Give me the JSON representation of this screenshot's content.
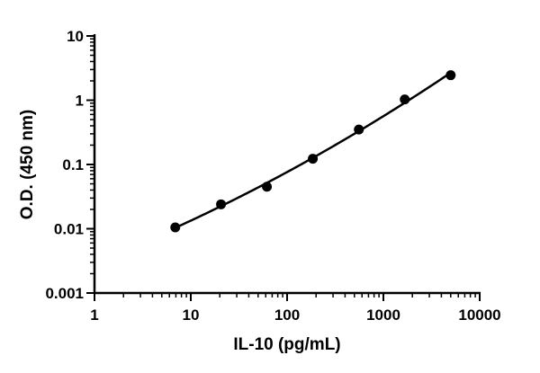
{
  "chart_data": {
    "type": "scatter",
    "title": "",
    "xlabel": "IL-10 (pg/mL)",
    "ylabel": "O.D. (450 nm)",
    "xscale": "log",
    "yscale": "log",
    "xlim": [
      1,
      10000
    ],
    "ylim": [
      0.001,
      10
    ],
    "x_ticks": [
      1,
      10,
      100,
      1000,
      10000
    ],
    "x_tick_labels": [
      "1",
      "10",
      "100",
      "1000",
      "10000"
    ],
    "y_ticks": [
      0.001,
      0.01,
      0.1,
      1,
      10
    ],
    "y_tick_labels": [
      "0.001",
      "0.01",
      "0.1",
      "1",
      "10"
    ],
    "grid": false,
    "legend": false,
    "series": [
      {
        "x": [
          6.9,
          20.6,
          61.7,
          185,
          556,
          1667,
          5000
        ],
        "y": [
          0.0105,
          0.024,
          0.045,
          0.123,
          0.35,
          1.03,
          2.45
        ],
        "marker": "filled-circle",
        "color": "#000000",
        "fit_curve": true
      }
    ]
  }
}
